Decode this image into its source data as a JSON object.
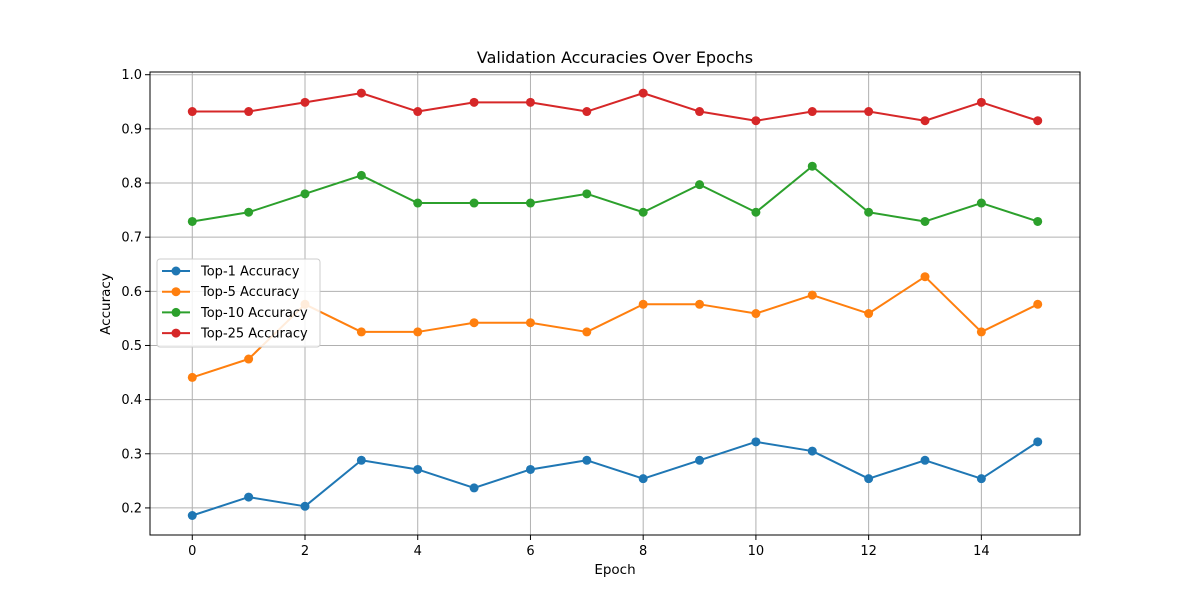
{
  "chart_data": {
    "type": "line",
    "title": "Validation Accuracies Over Epochs",
    "xlabel": "Epoch",
    "ylabel": "Accuracy",
    "xlim": [
      -0.75,
      15.75
    ],
    "ylim": [
      0.15,
      1.005
    ],
    "xticks": [
      0,
      2,
      4,
      6,
      8,
      10,
      12,
      14
    ],
    "yticks": [
      0.2,
      0.3,
      0.4,
      0.5,
      0.6,
      0.7,
      0.8,
      0.9,
      1.0
    ],
    "xtick_labels": [
      "0",
      "2",
      "4",
      "6",
      "8",
      "10",
      "12",
      "14"
    ],
    "ytick_labels": [
      "0.2",
      "0.3",
      "0.4",
      "0.5",
      "0.6",
      "0.7",
      "0.8",
      "0.9",
      "1.0"
    ],
    "grid": true,
    "legend_position": "center-left",
    "x": [
      0,
      1,
      2,
      3,
      4,
      5,
      6,
      7,
      8,
      9,
      10,
      11,
      12,
      13,
      14,
      15
    ],
    "series": [
      {
        "name": "Top-1 Accuracy",
        "color": "#1f77b4",
        "values": [
          0.186,
          0.22,
          0.203,
          0.288,
          0.271,
          0.237,
          0.271,
          0.288,
          0.254,
          0.288,
          0.322,
          0.305,
          0.254,
          0.288,
          0.254,
          0.322
        ]
      },
      {
        "name": "Top-5 Accuracy",
        "color": "#ff7f0e",
        "values": [
          0.441,
          0.475,
          0.576,
          0.525,
          0.525,
          0.542,
          0.542,
          0.525,
          0.576,
          0.576,
          0.559,
          0.593,
          0.559,
          0.627,
          0.525,
          0.576
        ]
      },
      {
        "name": "Top-10 Accuracy",
        "color": "#2ca02c",
        "values": [
          0.729,
          0.746,
          0.78,
          0.814,
          0.763,
          0.763,
          0.763,
          0.78,
          0.746,
          0.797,
          0.746,
          0.831,
          0.746,
          0.729,
          0.763,
          0.729
        ]
      },
      {
        "name": "Top-25 Accuracy",
        "color": "#d62728",
        "values": [
          0.932,
          0.932,
          0.949,
          0.966,
          0.932,
          0.949,
          0.949,
          0.932,
          0.966,
          0.932,
          0.915,
          0.932,
          0.932,
          0.915,
          0.949,
          0.915
        ]
      }
    ]
  }
}
